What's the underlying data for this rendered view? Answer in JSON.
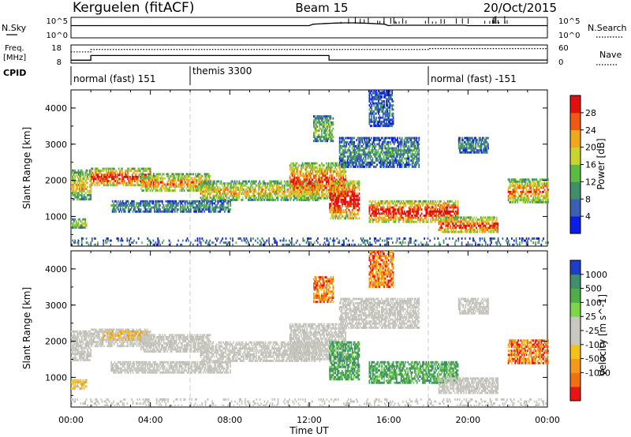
{
  "header": {
    "station": "Kerguelen (fitACF)",
    "beam": "Beam 15",
    "date": "20/Oct/2015"
  },
  "noise_panel": {
    "left_label": "N.Sky",
    "right_label": "N.Search",
    "left_ticks": [
      "10^5",
      "10^0"
    ],
    "right_ticks": [
      "10^5",
      "10^0"
    ]
  },
  "freq_panel": {
    "left_label_line1": "Freq.",
    "left_label_line2": "[MHz]",
    "right_label": "Nave",
    "left_ticks": [
      "18",
      "8"
    ],
    "right_ticks": [
      "60",
      "0"
    ],
    "freq_steps": [
      {
        "t": 0.0,
        "mhz": 9.6
      },
      {
        "t": 1.0,
        "mhz": 9.6
      },
      {
        "t": 1.0,
        "mhz": 12.2
      },
      {
        "t": 13.0,
        "mhz": 12.2
      },
      {
        "t": 13.0,
        "mhz": 9.7
      },
      {
        "t": 24.0,
        "mhz": 9.7
      }
    ],
    "nave_dotted": [
      {
        "t": 0.0,
        "val": 37
      },
      {
        "t": 1.0,
        "val": 37
      },
      {
        "t": 1.0,
        "val": 45
      },
      {
        "t": 18.0,
        "val": 45
      },
      {
        "t": 18.0,
        "val": 48
      },
      {
        "t": 24.0,
        "val": 48
      }
    ]
  },
  "cpid": {
    "label": "CPID",
    "segments": [
      {
        "t_start": 0.0,
        "text": "normal (fast) 151"
      },
      {
        "t_start": 6.0,
        "text": "themis 3300"
      },
      {
        "t_start": 18.0,
        "text": "normal (fast) -151"
      }
    ]
  },
  "chart_data": [
    {
      "type": "heatmap",
      "title": "",
      "ylabel": "Slant Range [km]",
      "yticks": [
        "1000",
        "2000",
        "3000",
        "4000"
      ],
      "ylim": [
        180,
        4500
      ],
      "xlim": [
        0,
        24
      ],
      "colorbar_label": "Power [dB]",
      "colorbar_ticks": [
        "4",
        "8",
        "12",
        "16",
        "20",
        "24",
        "28"
      ],
      "colorbar_range": [
        0,
        32
      ],
      "colorbar_colors": [
        "#0a1ee6",
        "#3c5fb2",
        "#3f8f6a",
        "#5cbb45",
        "#c8d431",
        "#f0a81c",
        "#ee5a12",
        "#e30e0e"
      ],
      "echo_bands": [
        {
          "t": [
            0.0,
            0.8
          ],
          "range": [
            700,
            950
          ],
          "level": 0.5
        },
        {
          "t": [
            0.0,
            1.0
          ],
          "range": [
            1500,
            2300
          ],
          "level": 0.6
        },
        {
          "t": [
            1.0,
            4.0
          ],
          "range": [
            1850,
            2350
          ],
          "level": 0.85
        },
        {
          "t": [
            3.5,
            7.0
          ],
          "range": [
            1700,
            2200
          ],
          "level": 0.7
        },
        {
          "t": [
            6.5,
            12.5
          ],
          "range": [
            1450,
            2000
          ],
          "level": 0.6
        },
        {
          "t": [
            2.0,
            8.0
          ],
          "range": [
            1150,
            1450
          ],
          "level": 0.3
        },
        {
          "t": [
            11.0,
            13.8
          ],
          "range": [
            1500,
            2500
          ],
          "level": 0.8
        },
        {
          "t": [
            13.0,
            14.5
          ],
          "range": [
            950,
            2000
          ],
          "level": 0.9
        },
        {
          "t": [
            15.0,
            19.5
          ],
          "range": [
            850,
            1450
          ],
          "level": 0.9
        },
        {
          "t": [
            18.5,
            21.5
          ],
          "range": [
            550,
            1000
          ],
          "level": 0.8
        },
        {
          "t": [
            22.0,
            24.0
          ],
          "range": [
            1400,
            2050
          ],
          "level": 0.7
        },
        {
          "t": [
            13.5,
            17.5
          ],
          "range": [
            2400,
            3200
          ],
          "level": 0.3
        },
        {
          "t": [
            19.5,
            21.0
          ],
          "range": [
            2800,
            3200
          ],
          "level": 0.3
        },
        {
          "t": [
            12.2,
            13.2
          ],
          "range": [
            3100,
            3800
          ],
          "level": 0.45
        },
        {
          "t": [
            15.0,
            16.2
          ],
          "range": [
            3500,
            4500
          ],
          "level": 0.2
        },
        {
          "t": [
            0.0,
            24.0
          ],
          "range": [
            200,
            420
          ],
          "level": 0.25
        }
      ]
    },
    {
      "type": "heatmap",
      "title": "",
      "ylabel": "Slant Range [km]",
      "yticks": [
        "1000",
        "2000",
        "3000",
        "4000"
      ],
      "ylim": [
        180,
        4500
      ],
      "xlim": [
        0,
        24
      ],
      "xlabel": "Time UT",
      "xticks": [
        "00:00",
        "04:00",
        "08:00",
        "12:00",
        "16:00",
        "20:00",
        "00:00"
      ],
      "colorbar_label": "Velocity [m s^-1]",
      "colorbar_ticks": [
        "1000",
        "500",
        "100",
        "25",
        "-25",
        "-100",
        "-500",
        "-1000"
      ],
      "colorbar_colors": [
        "#1e3ec8",
        "#3f8f6a",
        "#4fae48",
        "#7cd64c",
        "#c8c8c0",
        "#c8c8c0",
        "#f0c21a",
        "#f39a1c",
        "#f07016",
        "#ea1414"
      ],
      "echo_bands": [
        {
          "t": [
            0.0,
            0.8
          ],
          "range": [
            700,
            950
          ],
          "cat": "neg_small"
        },
        {
          "t": [
            0.0,
            1.0
          ],
          "range": [
            1500,
            2300
          ],
          "cat": "gs"
        },
        {
          "t": [
            1.0,
            4.0
          ],
          "range": [
            1850,
            2350
          ],
          "cat": "gs"
        },
        {
          "t": [
            1.5,
            3.8
          ],
          "range": [
            2050,
            2300
          ],
          "cat": "neg_med"
        },
        {
          "t": [
            3.5,
            7.0
          ],
          "range": [
            1700,
            2200
          ],
          "cat": "gs"
        },
        {
          "t": [
            6.5,
            12.5
          ],
          "range": [
            1450,
            2000
          ],
          "cat": "gs"
        },
        {
          "t": [
            2.0,
            8.0
          ],
          "range": [
            1150,
            1450
          ],
          "cat": "gs"
        },
        {
          "t": [
            11.0,
            13.8
          ],
          "range": [
            1500,
            2500
          ],
          "cat": "gs"
        },
        {
          "t": [
            13.0,
            14.5
          ],
          "range": [
            950,
            2000
          ],
          "cat": "pos_med"
        },
        {
          "t": [
            15.0,
            19.5
          ],
          "range": [
            850,
            1450
          ],
          "cat": "pos_med"
        },
        {
          "t": [
            18.5,
            21.5
          ],
          "range": [
            550,
            1000
          ],
          "cat": "gs"
        },
        {
          "t": [
            22.0,
            24.0
          ],
          "range": [
            1400,
            2050
          ],
          "cat": "neg_big"
        },
        {
          "t": [
            13.5,
            17.5
          ],
          "range": [
            2400,
            3200
          ],
          "cat": "gs"
        },
        {
          "t": [
            19.5,
            21.0
          ],
          "range": [
            2800,
            3200
          ],
          "cat": "gs"
        },
        {
          "t": [
            12.2,
            13.2
          ],
          "range": [
            3100,
            3800
          ],
          "cat": "neg_big"
        },
        {
          "t": [
            15.0,
            16.2
          ],
          "range": [
            3500,
            4500
          ],
          "cat": "neg_big"
        },
        {
          "t": [
            0.0,
            24.0
          ],
          "range": [
            200,
            420
          ],
          "cat": "gs"
        }
      ]
    }
  ]
}
